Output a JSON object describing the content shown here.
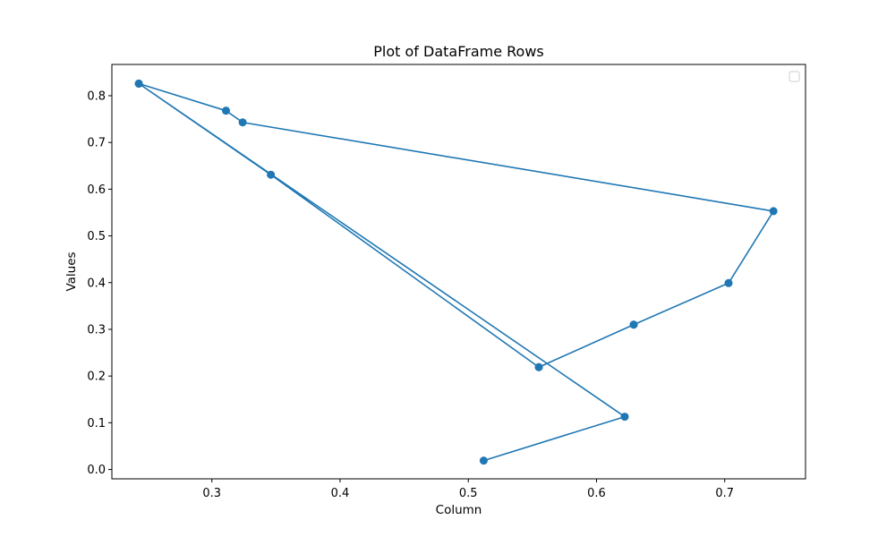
{
  "chart_data": {
    "type": "line",
    "title": "Plot of DataFrame Rows",
    "xlabel": "Column",
    "ylabel": "Values",
    "xlim": [
      0.222,
      0.763
    ],
    "ylim": [
      -0.02,
      0.867
    ],
    "xticks": [
      0.3,
      0.4,
      0.5,
      0.6,
      0.7
    ],
    "yticks": [
      0.0,
      0.1,
      0.2,
      0.3,
      0.4,
      0.5,
      0.6,
      0.7,
      0.8
    ],
    "grid": false,
    "legend": {
      "placement": "top-right",
      "entries": []
    },
    "series": [
      {
        "color": "#1f77b4",
        "marker": "circle",
        "points": [
          {
            "x": 0.512,
            "y": 0.019
          },
          {
            "x": 0.622,
            "y": 0.113
          },
          {
            "x": 0.243,
            "y": 0.826
          },
          {
            "x": 0.311,
            "y": 0.768
          },
          {
            "x": 0.324,
            "y": 0.743
          },
          {
            "x": 0.738,
            "y": 0.553
          },
          {
            "x": 0.703,
            "y": 0.399
          },
          {
            "x": 0.629,
            "y": 0.31
          },
          {
            "x": 0.555,
            "y": 0.219
          },
          {
            "x": 0.629,
            "y": 0.31
          },
          {
            "x": 0.555,
            "y": 0.219
          },
          {
            "x": 0.346,
            "y": 0.631
          },
          {
            "x": 0.243,
            "y": 0.826
          }
        ]
      }
    ]
  }
}
